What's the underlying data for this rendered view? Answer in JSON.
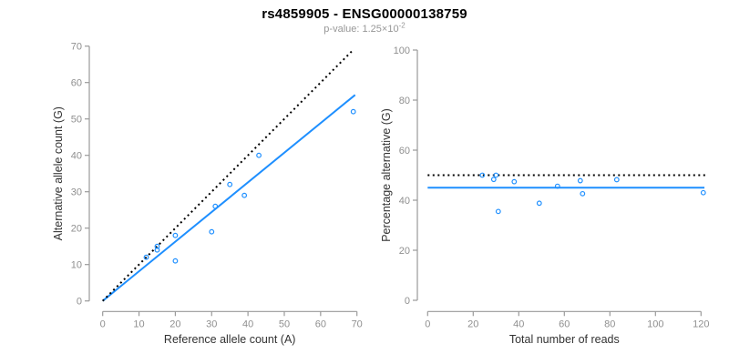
{
  "header": {
    "title": "rs4859905 - ENSG00000138759",
    "subtitle_prefix": "p-value: 1.25×10",
    "subtitle_exponent": "-2"
  },
  "colors": {
    "accent_blue": "#1e8fff",
    "line_black": "#000000",
    "axis_line": "#9a9a9a",
    "tick_label": "#8f8f8f",
    "axis_title": "#333333",
    "title": "#000000",
    "subtitle": "#979797"
  },
  "chart_data": [
    {
      "name": "allele-count-scatter",
      "type": "scatter",
      "xlabel": "Reference allele count (A)",
      "ylabel": "Alternative allele count (G)",
      "xlim": [
        0,
        70
      ],
      "ylim": [
        0,
        70
      ],
      "xticks": [
        0,
        10,
        20,
        30,
        40,
        50,
        60,
        70
      ],
      "yticks": [
        0,
        10,
        20,
        30,
        40,
        50,
        60,
        70
      ],
      "grid": false,
      "legend": null,
      "points_xy": [
        [
          12,
          12
        ],
        [
          15,
          14
        ],
        [
          15,
          15
        ],
        [
          20,
          11
        ],
        [
          20,
          18
        ],
        [
          30,
          19
        ],
        [
          31,
          26
        ],
        [
          35,
          32
        ],
        [
          39,
          29
        ],
        [
          43,
          40
        ],
        [
          69,
          52
        ]
      ],
      "lines": [
        {
          "name": "fitted-proportion-line",
          "style": "solid",
          "color": "blue",
          "x1": 0,
          "y1": 0,
          "x2": 69.5,
          "y2": 56.6
        },
        {
          "name": "identity-line",
          "style": "dotted",
          "color": "black",
          "x1": 0,
          "y1": 0,
          "x2": 69,
          "y2": 69
        }
      ]
    },
    {
      "name": "percentage-scatter",
      "type": "scatter",
      "xlabel": "Total number of reads",
      "ylabel": "Percentage alternative (G)",
      "xlim": [
        0,
        122
      ],
      "ylim": [
        0,
        100
      ],
      "xticks": [
        0,
        20,
        40,
        60,
        80,
        100,
        120
      ],
      "yticks": [
        0,
        20,
        40,
        60,
        80,
        100
      ],
      "grid": false,
      "legend": null,
      "points_xy": [
        [
          24,
          50
        ],
        [
          29,
          48.3
        ],
        [
          30,
          50
        ],
        [
          31,
          35.5
        ],
        [
          38,
          47.4
        ],
        [
          49,
          38.8
        ],
        [
          57,
          45.6
        ],
        [
          67,
          47.8
        ],
        [
          68,
          42.6
        ],
        [
          83,
          48.2
        ],
        [
          121,
          43
        ]
      ],
      "lines": [
        {
          "name": "mean-percentage-line",
          "style": "solid",
          "color": "blue",
          "x1": 0,
          "y1": 45,
          "x2": 121.5,
          "y2": 45
        },
        {
          "name": "expected-percentage-line",
          "style": "dotted",
          "color": "black",
          "x1": 0,
          "y1": 50,
          "x2": 122,
          "y2": 50
        }
      ]
    }
  ]
}
